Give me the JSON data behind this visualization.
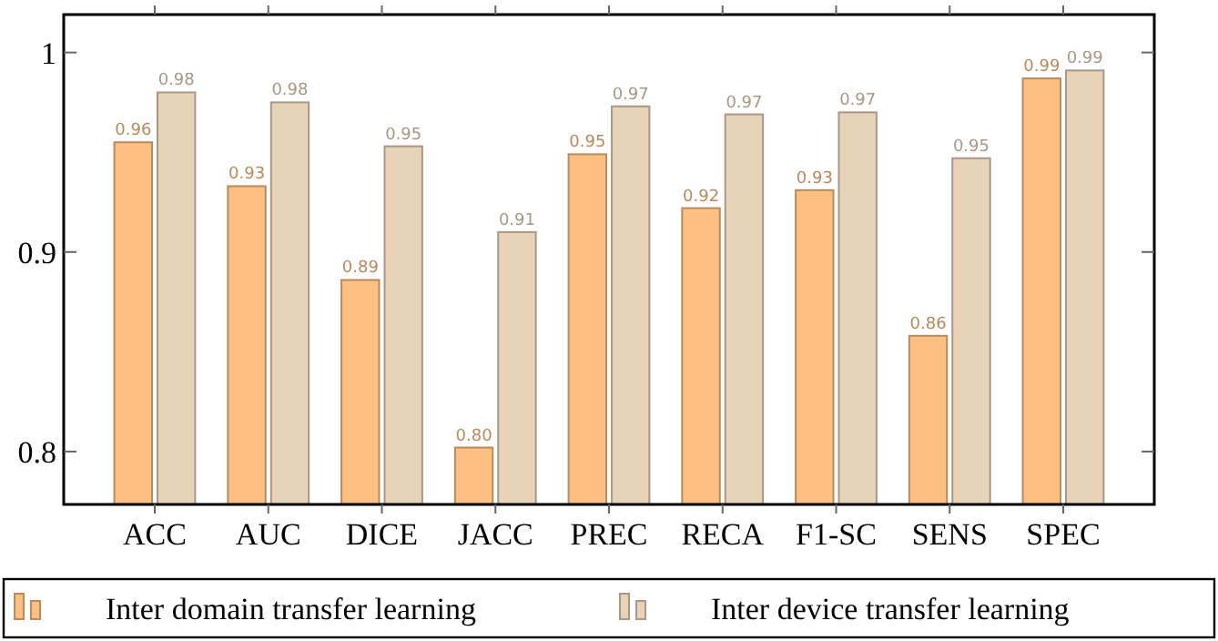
{
  "chart_data": {
    "type": "bar",
    "categories": [
      "ACC",
      "AUC",
      "DICE",
      "JACC",
      "PREC",
      "RECA",
      "F1-SC",
      "SENS",
      "SPEC"
    ],
    "series": [
      {
        "name": "Inter domain transfer learning",
        "color": "#fdbf82",
        "values": [
          0.955,
          0.933,
          0.886,
          0.802,
          0.949,
          0.922,
          0.931,
          0.858,
          0.987
        ],
        "value_labels": [
          "0.96",
          "0.93",
          "0.89",
          "0.80",
          "0.95",
          "0.92",
          "0.93",
          "0.86",
          "0.99"
        ]
      },
      {
        "name": "Inter device transfer learning",
        "color": "#e8d2b8",
        "values": [
          0.98,
          0.975,
          0.953,
          0.91,
          0.973,
          0.969,
          0.97,
          0.947,
          0.991
        ],
        "value_labels": [
          "0.98",
          "0.98",
          "0.95",
          "0.91",
          "0.97",
          "0.97",
          "0.97",
          "0.95",
          "0.99"
        ]
      }
    ],
    "ylim": [
      0.7735,
      1.019
    ],
    "yticks": [
      0.8,
      0.9,
      1
    ],
    "grid": false,
    "legend": "bottom"
  }
}
